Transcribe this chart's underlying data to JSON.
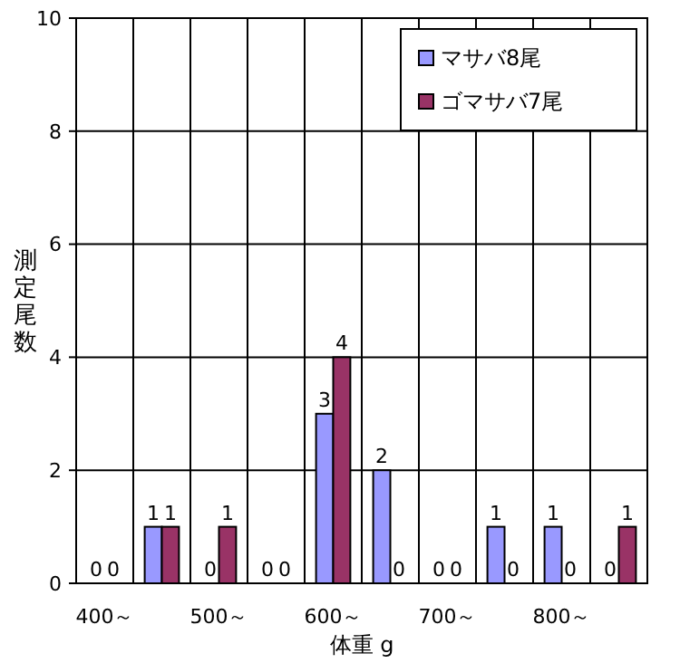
{
  "chart_data": {
    "type": "bar",
    "xlabel": "体重 g",
    "ylabel": "測定尾数",
    "categories": [
      "400～",
      null,
      "500～",
      null,
      "600～",
      null,
      "700～",
      null,
      "800～",
      null
    ],
    "series": [
      {
        "name": "マサバ8尾",
        "color": "#9999ff",
        "values": [
          0,
          1,
          0,
          0,
          3,
          2,
          0,
          1,
          1,
          0
        ]
      },
      {
        "name": "ゴマサバ7尾",
        "color": "#993366",
        "values": [
          0,
          1,
          1,
          0,
          4,
          0,
          0,
          0,
          0,
          1
        ]
      }
    ],
    "ylim": [
      0,
      10
    ],
    "yticks": [
      0,
      2,
      4,
      6,
      8,
      10
    ],
    "grid": true,
    "legend": "top right",
    "data_labels": true
  }
}
